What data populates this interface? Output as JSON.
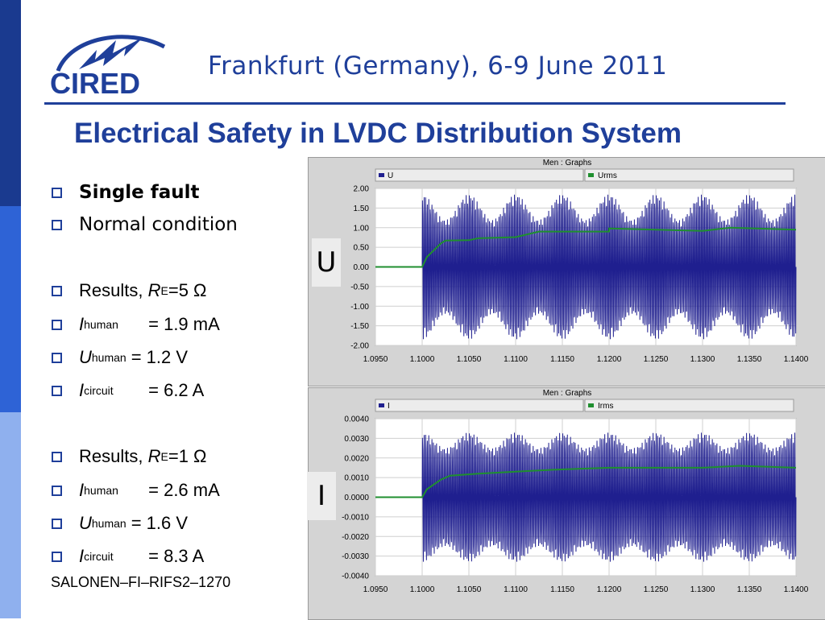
{
  "header": {
    "conference": "Frankfurt (Germany), 6-9 June 2011",
    "logo_text": "CIRED",
    "title": "Electrical Safety in LVDC Distribution System"
  },
  "bullets": [
    {
      "text": "Single fault",
      "bold": true
    },
    {
      "text": "Normal condition"
    },
    {
      "label": "Results,",
      "var": "R",
      "sub": "E",
      "rest": "=5 Ω"
    },
    {
      "var": "I",
      "sub": "human",
      "rest": "= 1.9 mA"
    },
    {
      "var": "U",
      "sub": "human",
      "rest": "= 1.2 V"
    },
    {
      "var": "I",
      "sub": "circuit",
      "rest": "= 6.2 A"
    },
    {
      "label": "Results,",
      "var": "R",
      "sub": "E",
      "rest": "=1 Ω"
    },
    {
      "var": "I",
      "sub": "human",
      "rest": "= 2.6 mA"
    },
    {
      "var": "U",
      "sub": "human",
      "rest": "= 1.6 V"
    },
    {
      "var": "I",
      "sub": "circuit",
      "rest": "= 8.3 A"
    }
  ],
  "reference": "SALONEN–FI–RIFS2–1270",
  "colors": {
    "brand": "#1f3f9a",
    "series_main": "#1f1f8f",
    "series_rms": "#1f8f2f"
  },
  "chart_data": [
    {
      "type": "line",
      "panel_title": "Men : Graphs",
      "side_label": "U",
      "x_ticks": [
        "1.0950",
        "1.1000",
        "1.1050",
        "1.1100",
        "1.1150",
        "1.1200",
        "1.1250",
        "1.1300",
        "1.1350",
        "1.1400"
      ],
      "xlim": [
        1.095,
        1.14
      ],
      "y_ticks": [
        "2.00",
        "1.50",
        "1.00",
        "0.50",
        "0.00",
        "-0.50",
        "-1.00",
        "-1.50",
        "-2.00"
      ],
      "ylim": [
        -2.0,
        2.0
      ],
      "fault_time": 1.1,
      "series": [
        {
          "name": "U",
          "kind": "oscillation",
          "amp_min": 1.2,
          "amp_max": 1.85
        },
        {
          "name": "Urms",
          "x": [
            1.095,
            1.1,
            1.1005,
            1.102,
            1.1025,
            1.105,
            1.106,
            1.11,
            1.1125,
            1.12,
            1.12,
            1.13,
            1.133,
            1.14
          ],
          "y": [
            0.0,
            0.0,
            0.25,
            0.6,
            0.67,
            0.68,
            0.73,
            0.76,
            0.9,
            0.9,
            0.98,
            0.92,
            1.0,
            0.95
          ]
        }
      ],
      "grid": true
    },
    {
      "type": "line",
      "panel_title": "Men : Graphs",
      "side_label": "I",
      "x_ticks": [
        "1.0950",
        "1.1000",
        "1.1050",
        "1.1100",
        "1.1150",
        "1.1200",
        "1.1250",
        "1.1300",
        "1.1350",
        "1.1400"
      ],
      "xlim": [
        1.095,
        1.14
      ],
      "y_ticks": [
        "0.0040",
        "0.0030",
        "0.0020",
        "0.0010",
        "0.0000",
        "-0.0010",
        "-0.0020",
        "-0.0030",
        "-0.0040"
      ],
      "ylim": [
        -0.004,
        0.004
      ],
      "fault_time": 1.1,
      "series": [
        {
          "name": "I",
          "kind": "oscillation",
          "amp_min": 0.0025,
          "amp_max": 0.0033
        },
        {
          "name": "Irms",
          "x": [
            1.095,
            1.1,
            1.1005,
            1.102,
            1.103,
            1.106,
            1.11,
            1.114,
            1.12,
            1.13,
            1.134,
            1.14
          ],
          "y": [
            0.0,
            0.0,
            0.0004,
            0.0009,
            0.0011,
            0.0012,
            0.0013,
            0.0014,
            0.0015,
            0.0015,
            0.0016,
            0.0015
          ]
        }
      ],
      "grid": true
    }
  ]
}
